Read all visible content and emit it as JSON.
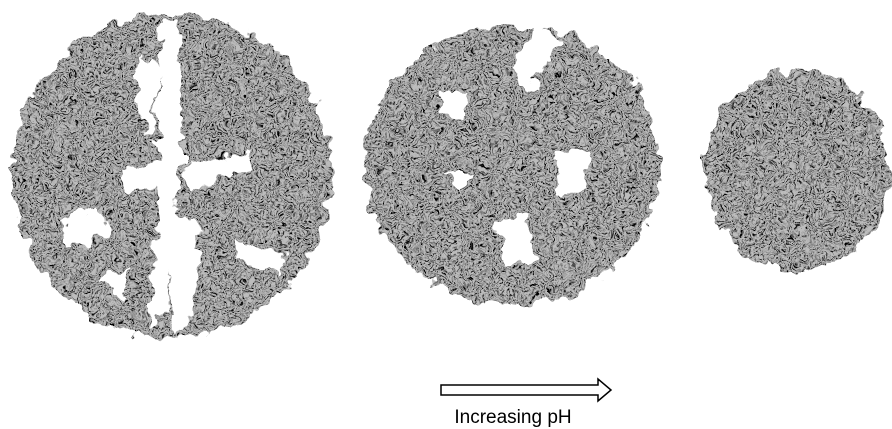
{
  "figure": {
    "arrow_label": "Increasing pH"
  }
}
